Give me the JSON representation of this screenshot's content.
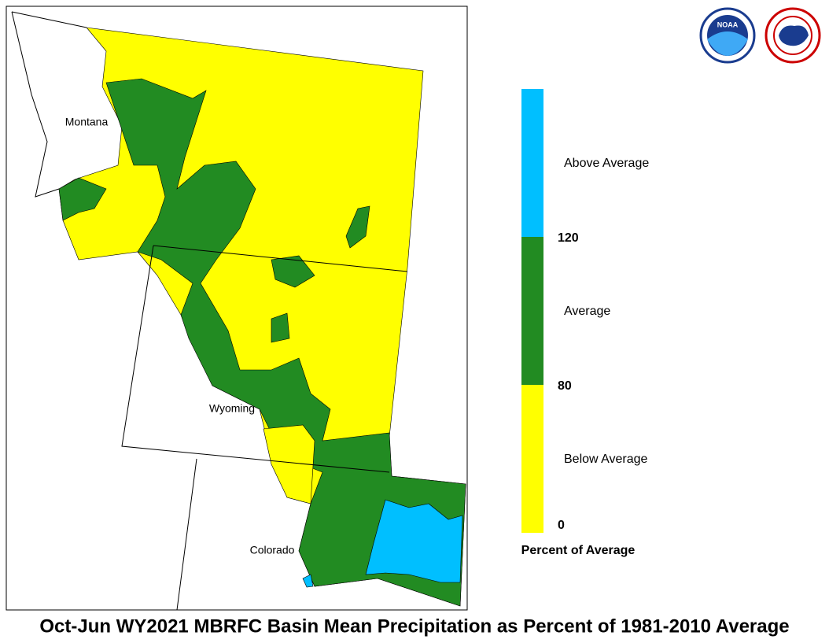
{
  "map": {
    "states": [
      "Montana",
      "Wyoming",
      "Colorado"
    ]
  },
  "logos": {
    "noaa": "NOAA"
  },
  "legend": {
    "title": "Percent of Average",
    "classes": [
      {
        "label": "Below Average",
        "color": "#ffff00"
      },
      {
        "label": "Average",
        "color": "#228b22"
      },
      {
        "label": "Above Average",
        "color": "#00bfff"
      }
    ],
    "ticks": [
      0,
      80,
      120
    ]
  },
  "caption": "Oct-Jun WY2021 MBRFC Basin Mean Precipitation as Percent of 1981-2010 Average"
}
